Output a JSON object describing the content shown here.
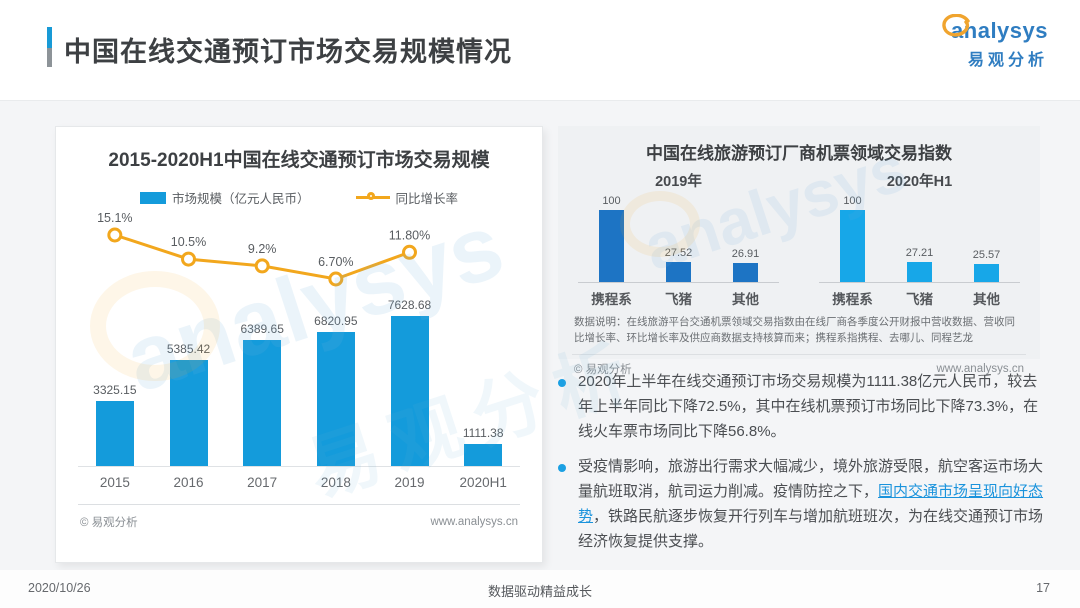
{
  "header": {
    "title": "中国在线交通预订市场交易规模情况",
    "logo_text": "analysys",
    "logo_subtext": "易观分析"
  },
  "left_card": {
    "title": "2015-2020H1中国在线交通预订市场交易规模",
    "legend": {
      "bars": "市场规模（亿元人民币）",
      "line": "同比增长率"
    },
    "source": "© 易观分析",
    "site": "www.analysys.cn"
  },
  "right_card": {
    "title": "中国在线旅游预订厂商机票领域交易指数",
    "note": "数据说明：在线旅游平台交通机票领域交易指数由在线厂商各季度公开财报中营收数据、营收同比增长率、环比增长率及供应商数据支持核算而来；携程系指携程、去哪儿、同程艺龙",
    "source": "© 易观分析",
    "site": "www.analysys.cn"
  },
  "bullets": [
    {
      "pre": "2020年上半年在线交通预订市场交易规模为1111.38亿元人民币，较去年上半年同比下降72.5%，其中在线机票预订市场同比下降73.3%，在线火车票市场同比下降56.8%。",
      "highlight": "",
      "post": ""
    },
    {
      "pre": "受疫情影响，旅游出行需求大幅减少，境外旅游受限，航空客运市场大量航班取消，航司运力削减。疫情防控之下，",
      "highlight": "国内交通市场呈现向好态势",
      "post": "，铁路民航逐步恢复开行列车与增加航班班次，为在线交通预订市场经济恢复提供支撑。"
    }
  ],
  "footer": {
    "date": "2020/10/26",
    "center": "数据驱动精益成长",
    "page": "17"
  },
  "colors": {
    "accent_blue": "#189ad6",
    "bar_blue": "#149bdb",
    "line_orange": "#f2a71d",
    "bar_blue_2019": "#1d74c4",
    "bar_cyan_2020": "#17a7e8",
    "highlight_text": "#1a93dc",
    "bullet_dot": "#1ba0e3",
    "logo_blue": "#2f7dc1",
    "logo_orange": "#f0a42e"
  },
  "watermark": {
    "text": "analysys"
  },
  "chart_data": [
    {
      "type": "bar",
      "title": "2015-2020H1中国在线交通预订市场交易规模",
      "categories": [
        "2015",
        "2016",
        "2017",
        "2018",
        "2019",
        "2020H1"
      ],
      "series": [
        {
          "name": "市场规模（亿元人民币）",
          "kind": "bar",
          "values": [
            3325.15,
            5385.42,
            6389.65,
            6820.95,
            7628.68,
            1111.38
          ],
          "labels": [
            "3325.15",
            "5385.42",
            "6389.65",
            "6820.95",
            "7628.68",
            "1111.38"
          ],
          "color": "#149bdb"
        },
        {
          "name": "同比增长率",
          "kind": "line",
          "values": [
            15.1,
            10.5,
            9.2,
            6.7,
            11.8
          ],
          "labels": [
            "15.1%",
            "10.5%",
            "9.2%",
            "6.70%",
            "11.80%"
          ],
          "color": "#f2a71d"
        }
      ],
      "ylim": [
        0,
        8000
      ],
      "legend_position": "top",
      "grid": false
    },
    {
      "type": "bar",
      "title": "中国在线旅游预订厂商机票领域交易指数",
      "groups": [
        {
          "label": "2019年",
          "categories": [
            "携程系",
            "飞猪",
            "其他"
          ],
          "values": [
            100,
            27.52,
            26.91
          ],
          "labels": [
            "100",
            "27.52",
            "26.91"
          ],
          "color": "#1d74c4"
        },
        {
          "label": "2020年H1",
          "categories": [
            "携程系",
            "飞猪",
            "其他"
          ],
          "values": [
            100,
            27.21,
            25.57
          ],
          "labels": [
            "100",
            "27.21",
            "25.57"
          ],
          "color": "#17a7e8"
        }
      ],
      "ylim": [
        0,
        110
      ],
      "grid": false
    }
  ]
}
